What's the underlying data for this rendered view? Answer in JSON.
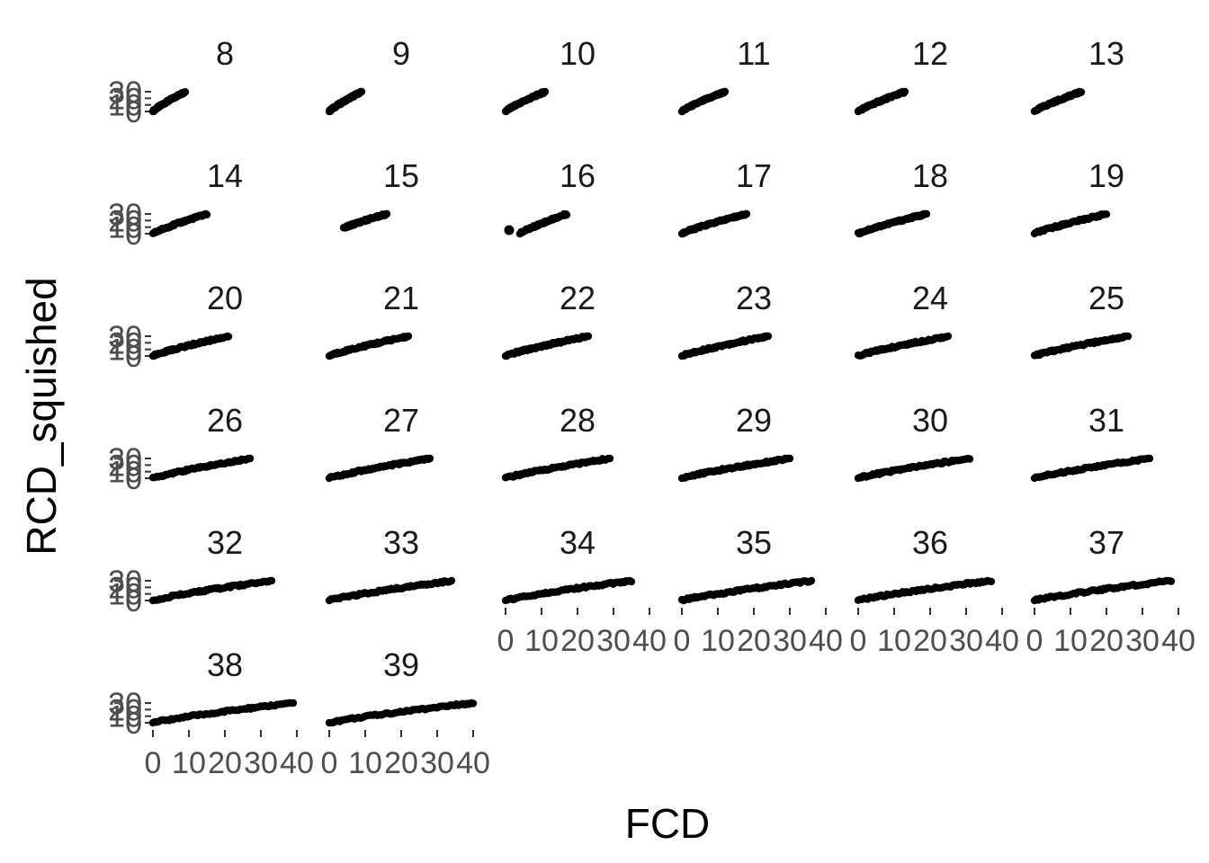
{
  "chart_data": {
    "type": "scatter",
    "facet_variable_values": [
      "8",
      "9",
      "10",
      "11",
      "12",
      "13",
      "14",
      "15",
      "16",
      "17",
      "18",
      "19",
      "20",
      "21",
      "22",
      "23",
      "24",
      "25",
      "26",
      "27",
      "28",
      "29",
      "30",
      "31",
      "32",
      "33",
      "34",
      "35",
      "36",
      "37",
      "38",
      "39"
    ],
    "ncol": 6,
    "xlabel": "FCD",
    "ylabel": "RCD_squished",
    "x_ticks": [
      "0",
      "10",
      "20",
      "30",
      "40"
    ],
    "y_ticks": [
      "30",
      "20",
      "10",
      "0"
    ],
    "xlim": [
      0,
      40
    ],
    "ylim": [
      0,
      30
    ],
    "grid": false,
    "panels": [
      {
        "label": "8",
        "x_range": [
          0,
          9
        ],
        "y_range": [
          0,
          30
        ]
      },
      {
        "label": "9",
        "x_range": [
          0,
          9
        ],
        "y_range": [
          0,
          30
        ]
      },
      {
        "label": "10",
        "x_range": [
          0,
          11
        ],
        "y_range": [
          0,
          30
        ]
      },
      {
        "label": "11",
        "x_range": [
          0,
          12
        ],
        "y_range": [
          0,
          30
        ]
      },
      {
        "label": "12",
        "x_range": [
          0,
          13
        ],
        "y_range": [
          0,
          30
        ]
      },
      {
        "label": "13",
        "x_range": [
          0,
          13
        ],
        "y_range": [
          0,
          30
        ]
      },
      {
        "label": "14",
        "x_range": [
          0,
          15
        ],
        "y_range": [
          0,
          30
        ]
      },
      {
        "label": "15",
        "x_range": [
          4,
          16
        ],
        "y_range": [
          8,
          30
        ]
      },
      {
        "label": "16",
        "x_range": [
          4,
          17
        ],
        "y_range": [
          0,
          30
        ]
      },
      {
        "label": "17",
        "x_range": [
          0,
          18
        ],
        "y_range": [
          0,
          30
        ]
      },
      {
        "label": "18",
        "x_range": [
          0,
          19
        ],
        "y_range": [
          0,
          30
        ]
      },
      {
        "label": "19",
        "x_range": [
          0,
          20
        ],
        "y_range": [
          0,
          30
        ]
      },
      {
        "label": "20",
        "x_range": [
          0,
          21
        ],
        "y_range": [
          0,
          30
        ]
      },
      {
        "label": "21",
        "x_range": [
          0,
          22
        ],
        "y_range": [
          0,
          30
        ]
      },
      {
        "label": "22",
        "x_range": [
          0,
          23
        ],
        "y_range": [
          0,
          30
        ]
      },
      {
        "label": "23",
        "x_range": [
          0,
          24
        ],
        "y_range": [
          0,
          30
        ]
      },
      {
        "label": "24",
        "x_range": [
          0,
          25
        ],
        "y_range": [
          0,
          30
        ]
      },
      {
        "label": "25",
        "x_range": [
          0,
          26
        ],
        "y_range": [
          0,
          30
        ]
      },
      {
        "label": "26",
        "x_range": [
          0,
          27
        ],
        "y_range": [
          0,
          30
        ]
      },
      {
        "label": "27",
        "x_range": [
          0,
          28
        ],
        "y_range": [
          0,
          30
        ]
      },
      {
        "label": "28",
        "x_range": [
          0,
          29
        ],
        "y_range": [
          0,
          30
        ]
      },
      {
        "label": "29",
        "x_range": [
          0,
          30
        ],
        "y_range": [
          0,
          30
        ]
      },
      {
        "label": "30",
        "x_range": [
          0,
          31
        ],
        "y_range": [
          0,
          30
        ]
      },
      {
        "label": "31",
        "x_range": [
          0,
          32
        ],
        "y_range": [
          0,
          30
        ]
      },
      {
        "label": "32",
        "x_range": [
          0,
          33
        ],
        "y_range": [
          0,
          30
        ]
      },
      {
        "label": "33",
        "x_range": [
          0,
          34
        ],
        "y_range": [
          0,
          30
        ]
      },
      {
        "label": "34",
        "x_range": [
          0,
          35
        ],
        "y_range": [
          0,
          30
        ]
      },
      {
        "label": "35",
        "x_range": [
          0,
          36
        ],
        "y_range": [
          0,
          30
        ]
      },
      {
        "label": "36",
        "x_range": [
          0,
          37
        ],
        "y_range": [
          0,
          30
        ]
      },
      {
        "label": "37",
        "x_range": [
          0,
          38
        ],
        "y_range": [
          0,
          30
        ]
      },
      {
        "label": "38",
        "x_range": [
          0,
          39
        ],
        "y_range": [
          0,
          30
        ]
      },
      {
        "label": "39",
        "x_range": [
          0,
          40
        ],
        "y_range": [
          0,
          30
        ]
      }
    ]
  }
}
